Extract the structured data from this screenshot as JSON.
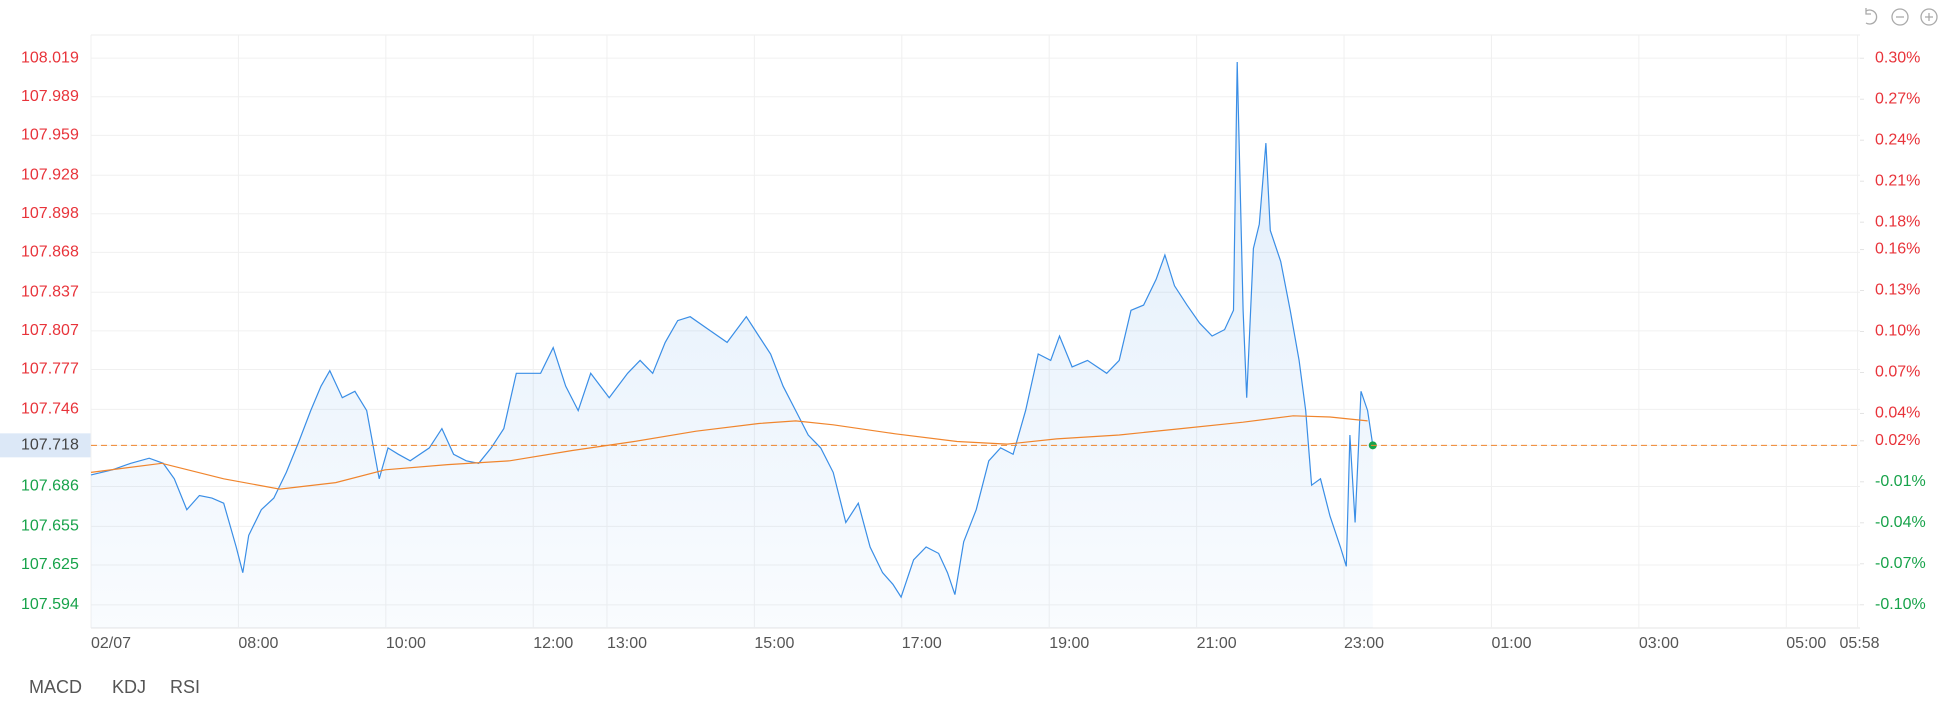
{
  "chart_data": {
    "type": "line",
    "xlim": [
      0,
      24
    ],
    "xticks": [
      {
        "value": 0,
        "label": "02/07"
      },
      {
        "value": 2,
        "label": "08:00"
      },
      {
        "value": 4,
        "label": "10:00"
      },
      {
        "value": 6,
        "label": "12:00"
      },
      {
        "value": 7,
        "label": "13:00"
      },
      {
        "value": 9,
        "label": "15:00"
      },
      {
        "value": 11,
        "label": "17:00"
      },
      {
        "value": 13,
        "label": "19:00"
      },
      {
        "value": 15,
        "label": "21:00"
      },
      {
        "value": 17,
        "label": "23:00"
      },
      {
        "value": 19,
        "label": "01:00"
      },
      {
        "value": 21,
        "label": "03:00"
      },
      {
        "value": 23,
        "label": "05:00"
      },
      {
        "value": 23.967,
        "label": "05:58"
      }
    ],
    "ylim": [
      107.576,
      108.037
    ],
    "yticks": [
      108.019,
      107.989,
      107.959,
      107.928,
      107.898,
      107.868,
      107.837,
      107.807,
      107.777,
      107.746,
      107.718,
      107.686,
      107.655,
      107.625,
      107.594
    ],
    "y2lim": [
      -0.117,
      0.317
    ],
    "y2ticks": [
      {
        "value": 0.3,
        "label": "0.30%"
      },
      {
        "value": 0.27,
        "label": "0.27%"
      },
      {
        "value": 0.24,
        "label": "0.24%"
      },
      {
        "value": 0.21,
        "label": "0.21%"
      },
      {
        "value": 0.18,
        "label": "0.18%"
      },
      {
        "value": 0.16,
        "label": "0.16%"
      },
      {
        "value": 0.13,
        "label": "0.13%"
      },
      {
        "value": 0.1,
        "label": "0.10%"
      },
      {
        "value": 0.07,
        "label": "0.07%"
      },
      {
        "value": 0.04,
        "label": "0.04%"
      },
      {
        "value": 0.02,
        "label": "0.02%"
      },
      {
        "value": -0.01,
        "label": "-0.01%"
      },
      {
        "value": -0.04,
        "label": "-0.04%"
      },
      {
        "value": -0.07,
        "label": "-0.07%"
      },
      {
        "value": -0.1,
        "label": "-0.10%"
      }
    ],
    "reference_price": 107.718,
    "up_color": "#e8333a",
    "down_color": "#17a34a",
    "last_point_color": "#17a34a",
    "grid": true,
    "series": [
      {
        "color": "#3a8ee6",
        "area": true,
        "x": [
          0,
          0.29,
          0.54,
          0.79,
          0.98,
          1.13,
          1.3,
          1.47,
          1.64,
          1.8,
          1.97,
          2.06,
          2.14,
          2.31,
          2.48,
          2.65,
          2.82,
          2.98,
          3.12,
          3.24,
          3.41,
          3.58,
          3.74,
          3.91,
          4.03,
          4.17,
          4.33,
          4.59,
          4.76,
          4.92,
          5.09,
          5.26,
          5.43,
          5.6,
          5.77,
          5.94,
          6.1,
          6.27,
          6.44,
          6.61,
          6.78,
          7.03,
          7.28,
          7.45,
          7.62,
          7.79,
          7.96,
          8.13,
          8.38,
          8.63,
          8.89,
          9.06,
          9.22,
          9.39,
          9.56,
          9.73,
          9.9,
          10.07,
          10.24,
          10.41,
          10.57,
          10.74,
          10.88,
          10.99,
          11.16,
          11.33,
          11.5,
          11.62,
          11.72,
          11.84,
          12.01,
          12.18,
          12.34,
          12.51,
          12.68,
          12.85,
          13.02,
          13.14,
          13.31,
          13.52,
          13.78,
          13.95,
          14.11,
          14.28,
          14.45,
          14.57,
          14.7,
          14.87,
          15.04,
          15.21,
          15.38,
          15.5,
          15.55,
          15.63,
          15.68,
          15.77,
          15.85,
          15.94,
          16.0,
          16.14,
          16.27,
          16.39,
          16.48,
          16.56,
          16.68,
          16.81,
          16.95,
          17.03,
          17.08,
          17.15,
          17.23,
          17.32,
          17.39
        ],
        "values": [
          107.695,
          107.699,
          107.704,
          107.708,
          107.704,
          107.692,
          107.668,
          107.679,
          107.677,
          107.673,
          107.639,
          107.619,
          107.648,
          107.668,
          107.677,
          107.697,
          107.721,
          107.745,
          107.764,
          107.776,
          107.755,
          107.76,
          107.745,
          107.692,
          107.716,
          107.711,
          107.706,
          107.716,
          107.731,
          107.711,
          107.706,
          107.704,
          107.716,
          107.731,
          107.774,
          107.774,
          107.774,
          107.794,
          107.764,
          107.745,
          107.774,
          107.755,
          107.774,
          107.784,
          107.774,
          107.798,
          107.815,
          107.818,
          107.808,
          107.798,
          107.818,
          107.803,
          107.789,
          107.764,
          107.745,
          107.726,
          107.716,
          107.697,
          107.658,
          107.673,
          107.639,
          107.619,
          107.61,
          107.6,
          107.629,
          107.639,
          107.634,
          107.619,
          107.602,
          107.643,
          107.668,
          107.706,
          107.716,
          107.711,
          107.745,
          107.789,
          107.784,
          107.803,
          107.779,
          107.784,
          107.774,
          107.784,
          107.823,
          107.827,
          107.847,
          107.866,
          107.842,
          107.827,
          107.813,
          107.803,
          107.808,
          107.823,
          108.016,
          107.823,
          107.755,
          107.871,
          107.89,
          107.953,
          107.885,
          107.861,
          107.823,
          107.784,
          107.745,
          107.687,
          107.692,
          107.663,
          107.639,
          107.624,
          107.726,
          107.658,
          107.76,
          107.745,
          107.718
        ]
      },
      {
        "color": "#f0852d",
        "x": [
          0,
          0.96,
          1.8,
          2.56,
          3.32,
          3.99,
          4.84,
          5.68,
          6.53,
          7.37,
          8.21,
          9.06,
          9.56,
          10.07,
          10.91,
          11.75,
          12.43,
          13.1,
          13.95,
          14.79,
          15.63,
          16.31,
          16.81,
          17.32
        ],
        "values": [
          107.697,
          107.704,
          107.692,
          107.684,
          107.689,
          107.699,
          107.703,
          107.706,
          107.714,
          107.721,
          107.729,
          107.735,
          107.737,
          107.734,
          107.727,
          107.721,
          107.719,
          107.723,
          107.726,
          107.731,
          107.736,
          107.741,
          107.74,
          107.737
        ]
      }
    ]
  },
  "tabs": [
    "MACD",
    "KDJ",
    "RSI"
  ]
}
